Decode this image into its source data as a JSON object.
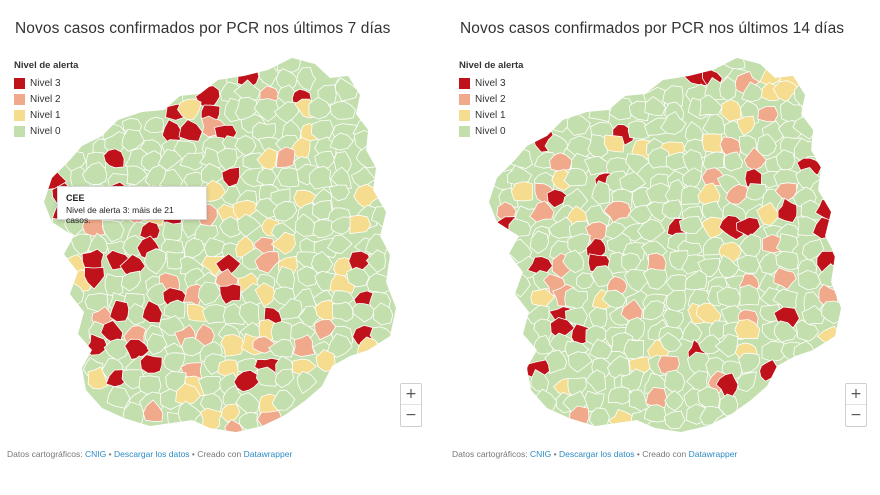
{
  "colors": {
    "nivel3": "#c0121a",
    "nivel2": "#f0a98b",
    "nivel1": "#f6dc8e",
    "nivel0": "#c4dfae",
    "border": "#ffffff"
  },
  "left_map": {
    "title": "Novos casos confirmados por PCR nos últimos 7 días",
    "legend_title": "Nivel de alerta",
    "legend_items": [
      {
        "label": "Nivel 3",
        "level": 3
      },
      {
        "label": "Nivel 2",
        "level": 2
      },
      {
        "label": "Nivel 1",
        "level": 1
      },
      {
        "label": "Nivel 0",
        "level": 0
      }
    ],
    "tooltip": {
      "title": "CEE",
      "text": "Nivel de alerta 3: máis de 21 casos."
    },
    "zoom": {
      "plus": "+",
      "minus": "−"
    }
  },
  "right_map": {
    "title": "Novos casos confirmados por PCR nos últimos 14 días",
    "legend_title": "Nivel de alerta",
    "legend_items": [
      {
        "label": "Nivel 3",
        "level": 3
      },
      {
        "label": "Nivel 2",
        "level": 2
      },
      {
        "label": "Nivel 1",
        "level": 1
      },
      {
        "label": "Nivel 0",
        "level": 0
      }
    ],
    "zoom": {
      "plus": "+",
      "minus": "−"
    }
  },
  "footer": {
    "prefix": "Datos cartográficos:",
    "source_link": "CNIG",
    "sep1": "•",
    "download_link": "Descargar los datos",
    "sep2": "•",
    "created_text": "Creado con",
    "tool_link": "Datawrapper"
  }
}
